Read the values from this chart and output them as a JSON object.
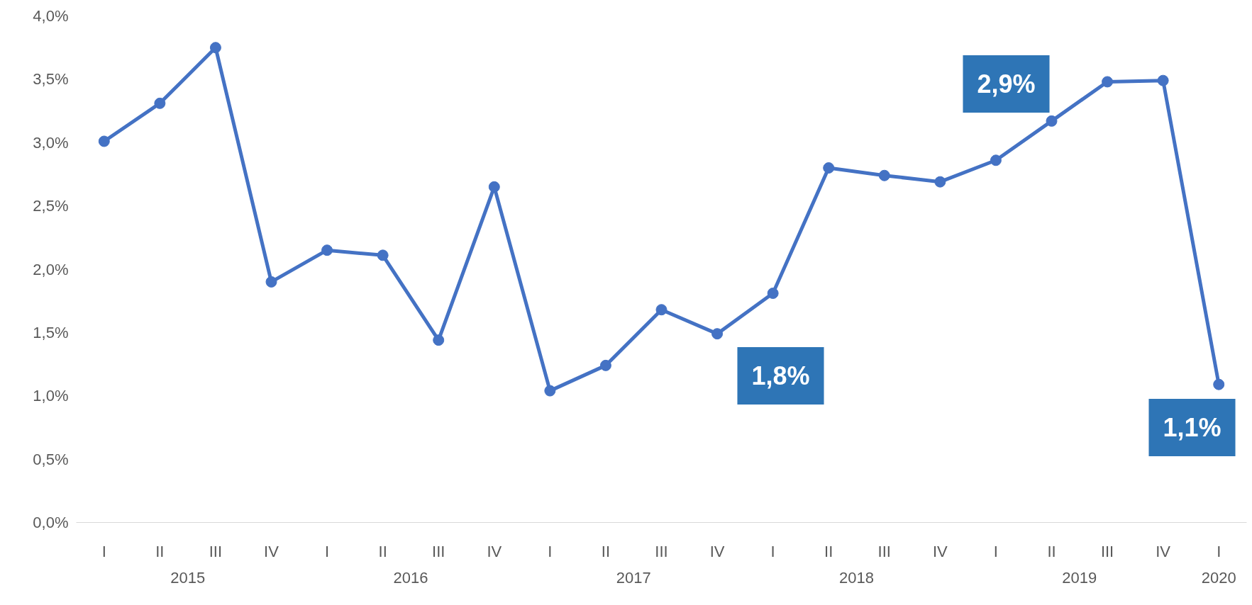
{
  "chart_data": {
    "type": "line",
    "categories": [
      "I",
      "II",
      "III",
      "IV",
      "I",
      "II",
      "III",
      "IV",
      "I",
      "II",
      "III",
      "IV",
      "I",
      "II",
      "III",
      "IV",
      "I",
      "II",
      "III",
      "IV",
      "I"
    ],
    "series": [
      {
        "color": "#4472c4",
        "values": [
          3.01,
          3.31,
          3.75,
          1.9,
          2.15,
          2.11,
          1.44,
          2.65,
          1.04,
          1.24,
          1.68,
          1.49,
          1.81,
          2.8,
          2.74,
          2.69,
          2.86,
          3.17,
          3.48,
          3.49,
          1.09
        ]
      }
    ],
    "ylim": [
      0,
      4
    ],
    "yticks": [
      {
        "value": 0,
        "label": "0,0%"
      },
      {
        "value": 0.5,
        "label": "0,5%"
      },
      {
        "value": 1,
        "label": "1,0%"
      },
      {
        "value": 1.5,
        "label": "1,5%"
      },
      {
        "value": 2,
        "label": "2,0%"
      },
      {
        "value": 2.5,
        "label": "2,5%"
      },
      {
        "value": 3,
        "label": "3,0%"
      },
      {
        "value": 3.5,
        "label": "3,5%"
      },
      {
        "value": 4,
        "label": "4,0%"
      }
    ],
    "annotations": [
      "1,8%",
      "2,9%",
      "1,1%",
      "2015",
      "2016",
      "2017",
      "2018",
      "2019",
      "2020"
    ],
    "grid": false,
    "marker": "circle",
    "line_style": "solid"
  }
}
